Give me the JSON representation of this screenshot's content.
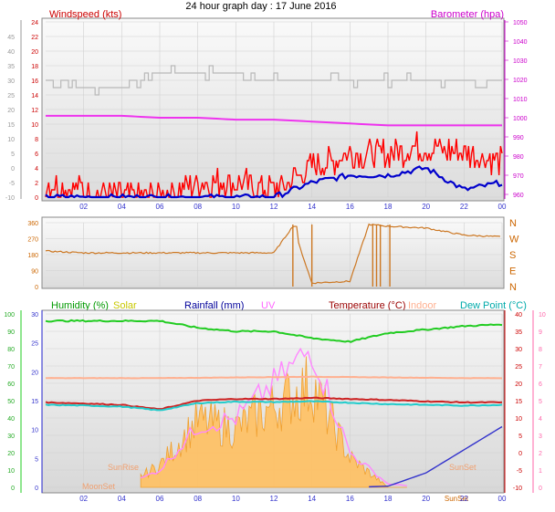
{
  "title": "24 hour graph day : 17 June 2016",
  "panel1": {
    "left_label": "Windspeed (kts)",
    "right_label": "Barometer (hpa)",
    "left_ticks_outer": [
      "-10",
      "-5",
      "0",
      "5",
      "10",
      "15",
      "20",
      "25",
      "30",
      "35",
      "40",
      "45"
    ],
    "left_ticks_inner": [
      "0",
      "2",
      "4",
      "6",
      "8",
      "10",
      "12",
      "14",
      "16",
      "18",
      "20",
      "22",
      "24"
    ],
    "right_ticks": [
      "960",
      "970",
      "980",
      "990",
      "1000",
      "1010",
      "1020",
      "1030",
      "1040",
      "1050"
    ],
    "x_ticks": [
      "02",
      "04",
      "06",
      "08",
      "10",
      "12",
      "14",
      "16",
      "18",
      "20",
      "22",
      "00"
    ]
  },
  "panel2": {
    "left_ticks": [
      "0",
      "90",
      "180",
      "270",
      "360"
    ],
    "right_labels": [
      "N",
      "E",
      "S",
      "W",
      "N"
    ]
  },
  "panel3": {
    "legend": [
      {
        "label": "Humidity (%)",
        "color": "#009900"
      },
      {
        "label": "Solar",
        "color": "#c8c800"
      },
      {
        "label": "Rainfall (mm)",
        "color": "#000099"
      },
      {
        "label": "UV",
        "color": "#ff66ff"
      },
      {
        "label": "Temperature (°C)",
        "color": "#990000"
      },
      {
        "label": "Indoor",
        "color": "#ffb090"
      },
      {
        "label": "Dew Point (°C)",
        "color": "#00aaaa"
      }
    ],
    "left_ticks_outer": [
      "0",
      "10",
      "20",
      "30",
      "40",
      "50",
      "60",
      "70",
      "80",
      "90",
      "100"
    ],
    "left_ticks_inner": [
      "0",
      "5",
      "10",
      "15",
      "20",
      "25",
      "30"
    ],
    "right_ticks_inner": [
      "-10",
      "-5",
      "0",
      "5",
      "10",
      "15",
      "20",
      "25",
      "30",
      "35",
      "40"
    ],
    "right_ticks_outer": [
      "0",
      "1",
      "2",
      "3",
      "4",
      "5",
      "6",
      "7",
      "8",
      "9",
      "10"
    ],
    "annotations": {
      "sunrise": "SunRise",
      "moonset": "MoonSet",
      "sunset": "SunSet"
    },
    "x_ticks": [
      "02",
      "04",
      "06",
      "08",
      "10",
      "12",
      "14",
      "16",
      "18",
      "20",
      "SunSet",
      "22",
      "00"
    ]
  },
  "chart_data": [
    {
      "type": "line",
      "x_hours": [
        0,
        2,
        4,
        6,
        8,
        10,
        12,
        14,
        16,
        18,
        20,
        22,
        24
      ],
      "series": [
        {
          "name": "Windspeed (kts)",
          "color": "#ff0000",
          "values": [
            2,
            1,
            0,
            0,
            2,
            2,
            1,
            4,
            6,
            6,
            7,
            6,
            5
          ]
        },
        {
          "name": "Barometer (hpa)",
          "color": "#ee00ee",
          "values": [
            1001,
            1001,
            1001,
            1000,
            1000,
            999,
            999,
            998,
            997,
            996,
            996,
            996,
            996
          ]
        },
        {
          "color": "#0000cc",
          "values": [
            0,
            0,
            0,
            0,
            0,
            0,
            0,
            2,
            3,
            3,
            4,
            1,
            2
          ]
        },
        {
          "color": "#aaaaaa",
          "values": [
            16,
            15,
            15,
            17,
            17,
            17,
            16,
            16,
            16,
            16,
            16,
            16,
            16
          ]
        }
      ],
      "ylim_left": [
        0,
        24
      ],
      "ylim_right": [
        960,
        1050
      ]
    },
    {
      "type": "scatter",
      "name": "Wind direction",
      "x_hours": [
        0,
        2,
        4,
        6,
        8,
        10,
        12,
        13,
        14,
        16,
        17,
        18,
        20,
        22,
        24
      ],
      "values": [
        200,
        190,
        190,
        190,
        190,
        190,
        190,
        340,
        20,
        30,
        350,
        340,
        330,
        290,
        280
      ],
      "ylim": [
        0,
        360
      ]
    },
    {
      "type": "line",
      "x_hours": [
        0,
        2,
        4,
        6,
        8,
        10,
        12,
        14,
        16,
        18,
        20,
        22,
        24
      ],
      "series": [
        {
          "name": "Humidity (%)",
          "color": "#22cc22",
          "values": [
            96,
            96,
            96,
            96,
            92,
            90,
            90,
            86,
            84,
            89,
            91,
            93,
            94
          ]
        },
        {
          "name": "Temperature (°C)",
          "color": "#cc2222",
          "values": [
            14.5,
            14.2,
            13.8,
            12.5,
            15,
            15.5,
            15.5,
            15.8,
            15.5,
            15.2,
            14.8,
            14.5,
            14.5
          ]
        },
        {
          "name": "Dew Point (°C)",
          "color": "#22cccc",
          "values": [
            13.8,
            13.6,
            13.3,
            12.2,
            14.3,
            14.7,
            14.6,
            14.8,
            14.4,
            14,
            13.8,
            13.6,
            13.8
          ]
        },
        {
          "name": "Indoor",
          "color": "#ffb090",
          "values": [
            21.5,
            21.5,
            21.5,
            21.5,
            21.6,
            21.7,
            21.8,
            21.9,
            21.8,
            21.7,
            21.6,
            21.5,
            21.5
          ]
        },
        {
          "name": "Rainfall (mm)",
          "color": "#3333cc",
          "values": [
            0,
            0,
            0,
            0,
            0,
            0,
            0,
            0,
            0,
            0.2,
            2.5,
            6.5,
            10.5
          ]
        },
        {
          "name": "Solar",
          "color": "#ffbb44",
          "values": [
            0,
            0,
            0,
            1.5,
            4.5,
            4,
            5.5,
            7,
            2,
            0,
            0,
            0,
            0
          ]
        },
        {
          "name": "UV",
          "color": "#ff88ff",
          "values": [
            0,
            0,
            0,
            1,
            3.5,
            4,
            6,
            8,
            2,
            0.2,
            0,
            0,
            0
          ]
        }
      ]
    }
  ]
}
